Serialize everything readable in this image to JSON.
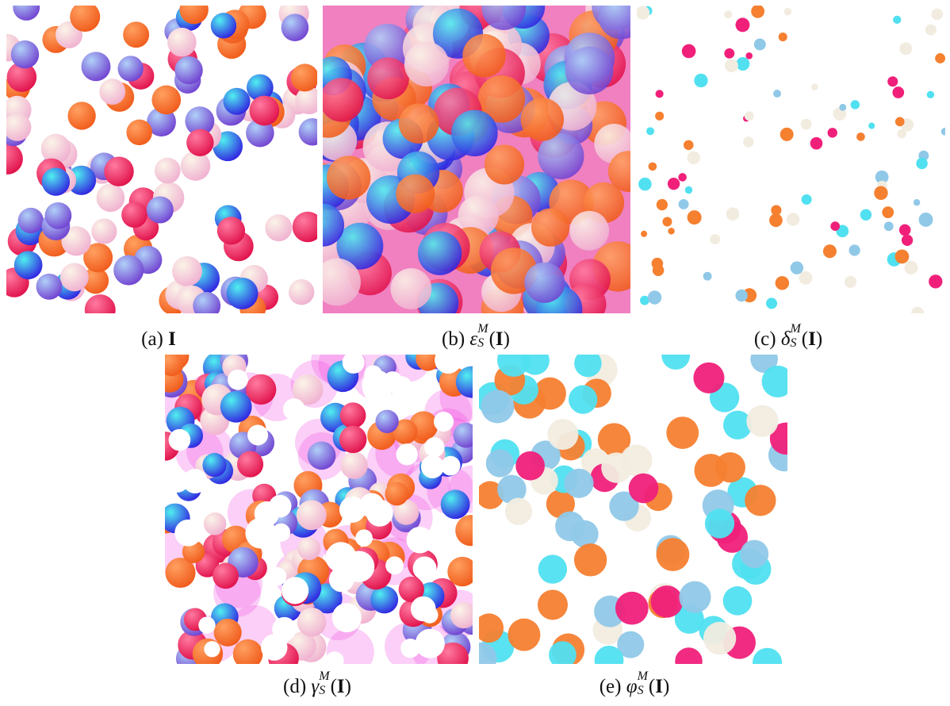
{
  "panels": [
    {
      "label": "(a)",
      "arg": "I"
    },
    {
      "label": "(b)",
      "op": "ε",
      "sup": "M",
      "sub": "S",
      "open": "(",
      "arg": "I",
      "close": ")"
    },
    {
      "label": "(c)",
      "op": "δ",
      "sup": "M",
      "sub": "S",
      "open": "(",
      "arg": "I",
      "close": ")"
    },
    {
      "label": "(d)",
      "op": "γ",
      "sup": "M",
      "sub": "S",
      "open": "(",
      "arg": "I",
      "close": ")"
    },
    {
      "label": "(e)",
      "op": "φ",
      "sup": "M",
      "sub": "S",
      "open": "(",
      "arg": "I",
      "close": ")"
    }
  ]
}
